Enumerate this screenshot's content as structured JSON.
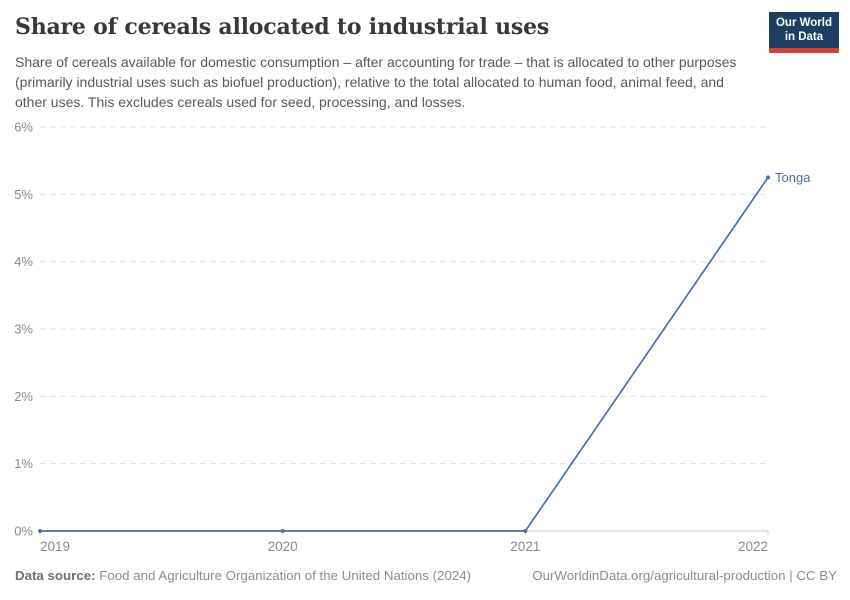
{
  "header": {
    "title": "Share of cereals allocated to industrial uses",
    "subtitle": "Share of cereals available for domestic consumption – after accounting for trade – that is allocated to other purposes (primarily industrial uses such as biofuel production), relative to the total allocated to human food, animal feed, and other uses. This excludes cereals used for seed, processing, and losses."
  },
  "logo": {
    "line1": "Our World",
    "line2": "in Data"
  },
  "chart_data": {
    "type": "line",
    "title": "Share of cereals allocated to industrial uses",
    "x": [
      2019,
      2020,
      2021,
      2022
    ],
    "x_labels": [
      "2019",
      "2020",
      "2021",
      "2022"
    ],
    "series": [
      {
        "name": "Tonga",
        "values": [
          0,
          0,
          0,
          5.25
        ],
        "color": "#4c6ea9"
      }
    ],
    "ylim": [
      0,
      6
    ],
    "yticks": [
      0,
      1,
      2,
      3,
      4,
      5,
      6
    ],
    "ytick_labels": [
      "0%",
      "1%",
      "2%",
      "3%",
      "4%",
      "5%",
      "6%"
    ],
    "xlabel": "",
    "ylabel": "",
    "grid": "horizontal-dashed",
    "legend": "line-end-label"
  },
  "colors": {
    "line": "#4c6ea9",
    "grid": "#e0e0e0",
    "axis": "#c9c9c9",
    "tick_label": "#8b8b8b",
    "logo_bg": "#1d3d63",
    "logo_bar": "#d7412f"
  },
  "footer": {
    "datasource_label": "Data source:",
    "datasource_text": "Food and Agriculture Organization of the United Nations (2024)",
    "credit": "OurWorldinData.org/agricultural-production | CC BY"
  }
}
